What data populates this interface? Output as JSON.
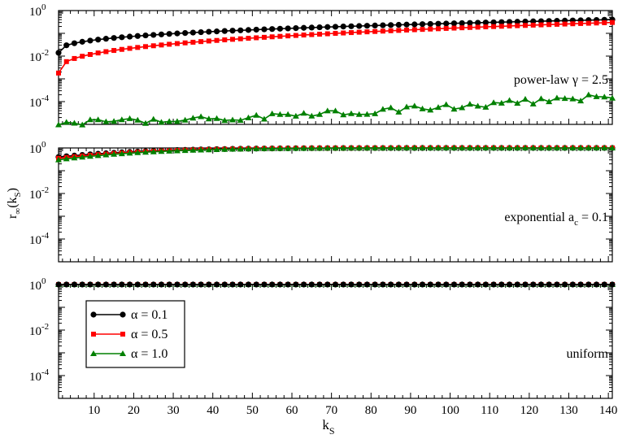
{
  "chart_data": [
    {
      "type": "line",
      "annotation": "power-law γ = 2.5",
      "xlim": [
        1,
        141
      ],
      "ylim_log10": [
        -5,
        0
      ],
      "ytick_labels": [
        {
          "base": "10",
          "exp": "0"
        },
        {
          "base": "10",
          "exp": "-2"
        },
        {
          "base": "10",
          "exp": "-4"
        }
      ],
      "series": [
        {
          "name": "α = 0.1",
          "color": "#000000",
          "marker": "circle",
          "y_start": 0.014,
          "y_end": 0.4
        },
        {
          "name": "α = 0.5",
          "color": "#ff0000",
          "marker": "square",
          "y_start": 0.0018,
          "y_end": 0.3
        },
        {
          "name": "α = 1.0",
          "color": "#008000",
          "marker": "triangle",
          "y_start": 1.2e-05,
          "y_end": 0.00018
        }
      ]
    },
    {
      "type": "line",
      "annotation_main": "exponential a",
      "annotation_sub": "c",
      "annotation_tail": " = 0.1",
      "xlim": [
        1,
        141
      ],
      "ylim_log10": [
        -5,
        0
      ],
      "ytick_labels": [
        {
          "base": "10",
          "exp": "0"
        },
        {
          "base": "10",
          "exp": "-2"
        },
        {
          "base": "10",
          "exp": "-4"
        }
      ],
      "series": [
        {
          "name": "α = 0.1",
          "color": "#000000",
          "marker": "circle",
          "y_start": 0.4,
          "y_end": 1.0
        },
        {
          "name": "α = 0.5",
          "color": "#ff0000",
          "marker": "square",
          "y_start": 0.35,
          "y_end": 1.0
        },
        {
          "name": "α = 1.0",
          "color": "#008000",
          "marker": "triangle",
          "y_start": 0.3,
          "y_end": 1.0
        }
      ]
    },
    {
      "type": "line",
      "annotation": "uniform",
      "xlim": [
        1,
        141
      ],
      "ylim_log10": [
        -5,
        0
      ],
      "ytick_labels": [
        {
          "base": "10",
          "exp": "0"
        },
        {
          "base": "10",
          "exp": "-2"
        },
        {
          "base": "10",
          "exp": "-4"
        }
      ],
      "xticks": [
        10,
        20,
        30,
        40,
        50,
        60,
        70,
        80,
        90,
        100,
        110,
        120,
        130,
        140
      ],
      "legend_placement": "bottom-left",
      "series": [
        {
          "name": "α = 0.1",
          "color": "#000000",
          "marker": "circle",
          "y_start": 1.0,
          "y_end": 1.0
        },
        {
          "name": "α = 0.5",
          "color": "#ff0000",
          "marker": "square",
          "y_start": 1.0,
          "y_end": 1.0
        },
        {
          "name": "α = 1.0",
          "color": "#008000",
          "marker": "triangle",
          "y_start": 1.0,
          "y_end": 1.0
        }
      ]
    }
  ],
  "ylabel": {
    "main": "r",
    "sub1": "∞",
    "paren_open": "(k",
    "sub2": "S",
    "paren_close": ")"
  },
  "xlabel": {
    "main": "k",
    "sub": "S"
  }
}
